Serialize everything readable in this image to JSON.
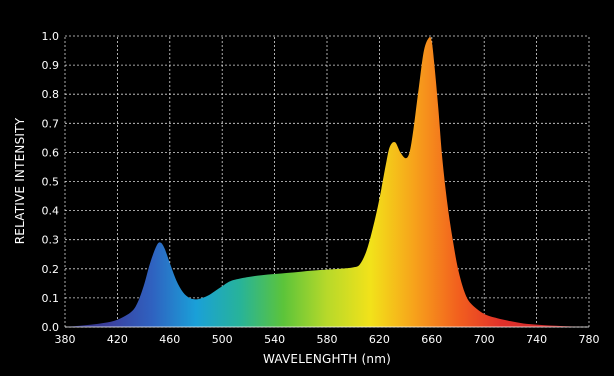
{
  "chart_data": {
    "type": "area",
    "title": "",
    "xlabel": "WAVELENGHTH (nm)",
    "ylabel": "RELATIVE INTENSITY",
    "xlim": [
      380,
      780
    ],
    "ylim": [
      0.0,
      1.0
    ],
    "grid": true,
    "x_ticks": [
      380,
      420,
      460,
      500,
      540,
      580,
      620,
      660,
      700,
      740,
      780
    ],
    "y_ticks": [
      "0.0",
      "0.1",
      "0.2",
      "0.3",
      "0.4",
      "0.5",
      "0.6",
      "0.7",
      "0.8",
      "0.9",
      "1.0"
    ],
    "series": [
      {
        "fill": "visible-spectrum-gradient",
        "x": [
          380,
          390,
          400,
          410,
          420,
          430,
          435,
          440,
          445,
          450,
          453,
          456,
          460,
          465,
          470,
          475,
          480,
          485,
          490,
          495,
          500,
          505,
          510,
          520,
          530,
          540,
          550,
          560,
          570,
          580,
          590,
          600,
          605,
          610,
          615,
          620,
          625,
          628,
          632,
          636,
          640,
          643,
          646,
          650,
          654,
          658,
          660,
          662,
          665,
          668,
          672,
          676,
          680,
          685,
          690,
          700,
          710,
          720,
          730,
          740,
          750,
          760,
          770,
          780
        ],
        "y": [
          0.0,
          0.004,
          0.008,
          0.014,
          0.025,
          0.05,
          0.08,
          0.14,
          0.22,
          0.28,
          0.29,
          0.27,
          0.22,
          0.16,
          0.12,
          0.1,
          0.095,
          0.1,
          0.11,
          0.125,
          0.14,
          0.155,
          0.163,
          0.172,
          0.178,
          0.182,
          0.186,
          0.19,
          0.194,
          0.197,
          0.2,
          0.205,
          0.215,
          0.26,
          0.34,
          0.44,
          0.56,
          0.62,
          0.635,
          0.6,
          0.58,
          0.6,
          0.68,
          0.82,
          0.95,
          0.995,
          0.98,
          0.9,
          0.75,
          0.58,
          0.42,
          0.3,
          0.2,
          0.12,
          0.08,
          0.045,
          0.03,
          0.02,
          0.012,
          0.008,
          0.005,
          0.003,
          0.001,
          0.0
        ]
      }
    ],
    "colors": {
      "background": "#000000",
      "grid": "#ffffff",
      "text": "#ffffff",
      "spectrum_stops": [
        "#2a2a78",
        "#3b3f9e",
        "#2f62c0",
        "#1aa0d8",
        "#27b39a",
        "#5cc43a",
        "#b7d92a",
        "#f2e21a",
        "#f7a21b",
        "#f2601e",
        "#e2302a",
        "#d12c2c",
        "#b82727"
      ]
    }
  }
}
